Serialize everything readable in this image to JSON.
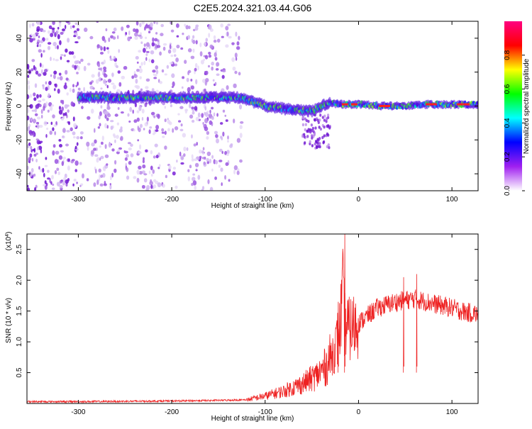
{
  "title": "C2E5.2024.321.03.44.G06",
  "chart_data": [
    {
      "type": "heatmap",
      "name": "spectrogram",
      "xlabel": "Height of straight line (km)",
      "ylabel": "Frequency (Hz)",
      "xlim": [
        -355,
        128
      ],
      "ylim": [
        -50,
        50
      ],
      "xticks": [
        -300,
        -200,
        -100,
        0,
        100
      ],
      "xtick_labels": [
        "-300",
        "-200",
        "-100",
        "0",
        "100"
      ],
      "yticks": [
        -40,
        -20,
        0,
        20,
        40
      ],
      "ytick_labels": [
        "-40",
        "-20",
        "0",
        "20",
        "40"
      ],
      "colorbar": {
        "label": "Normalized spectral amplitude",
        "range": [
          0,
          1
        ],
        "ticks": [
          0.0,
          0.2,
          0.4,
          0.6,
          0.8
        ],
        "tick_labels": [
          "0.0",
          "0.2",
          "0.4",
          "0.6",
          "0.8"
        ],
        "colors": [
          "#ffffff",
          "#a020f0",
          "#0000ff",
          "#00ffff",
          "#00ff00",
          "#ffff00",
          "#ff0000",
          "#ff0080"
        ]
      },
      "ridge": {
        "x": [
          -300,
          -250,
          -200,
          -150,
          -125,
          -100,
          -75,
          -50,
          -40,
          -30,
          -20,
          0,
          25,
          50,
          75,
          100,
          125
        ],
        "y": [
          5,
          5,
          5,
          5,
          5,
          0,
          -2,
          -3,
          0,
          2,
          1,
          1,
          0,
          0,
          1,
          1,
          1
        ]
      },
      "grid": false
    },
    {
      "type": "line",
      "name": "snr",
      "xlabel": "Height of straight line (km)",
      "ylabel": "SNR (10 * v/v)",
      "y_multiplier": "(x10",
      "y_multiplier_exp": "4",
      "y_multiplier_close": ")",
      "xlim": [
        -355,
        128
      ],
      "ylim": [
        0,
        2.75
      ],
      "xticks": [
        -300,
        -200,
        -100,
        0,
        100
      ],
      "xtick_labels": [
        "-300",
        "-200",
        "-100",
        "0",
        "100"
      ],
      "yticks": [
        0.5,
        1.0,
        1.5,
        2.0,
        2.5
      ],
      "ytick_labels": [
        "0.5",
        "1.0",
        "1.5",
        "2.0",
        "2.5"
      ],
      "color": "#ee2222",
      "envelope": {
        "x": [
          -355,
          -300,
          -200,
          -150,
          -120,
          -100,
          -80,
          -60,
          -45,
          -35,
          -25,
          -20,
          -17,
          -15,
          -10,
          0,
          20,
          40,
          60,
          80,
          100,
          115,
          128
        ],
        "y": [
          0.03,
          0.03,
          0.04,
          0.05,
          0.06,
          0.12,
          0.2,
          0.32,
          0.45,
          0.6,
          0.9,
          1.2,
          1.8,
          1.3,
          1.2,
          1.3,
          1.55,
          1.65,
          1.7,
          1.62,
          1.55,
          1.48,
          1.45
        ]
      },
      "spikes": [
        {
          "x": -15,
          "y": 2.75
        },
        {
          "x": -22,
          "y": 1.65
        },
        {
          "x": 62,
          "y": 2.1
        },
        {
          "x": 48,
          "y": 2.05
        }
      ],
      "grid": false
    }
  ]
}
